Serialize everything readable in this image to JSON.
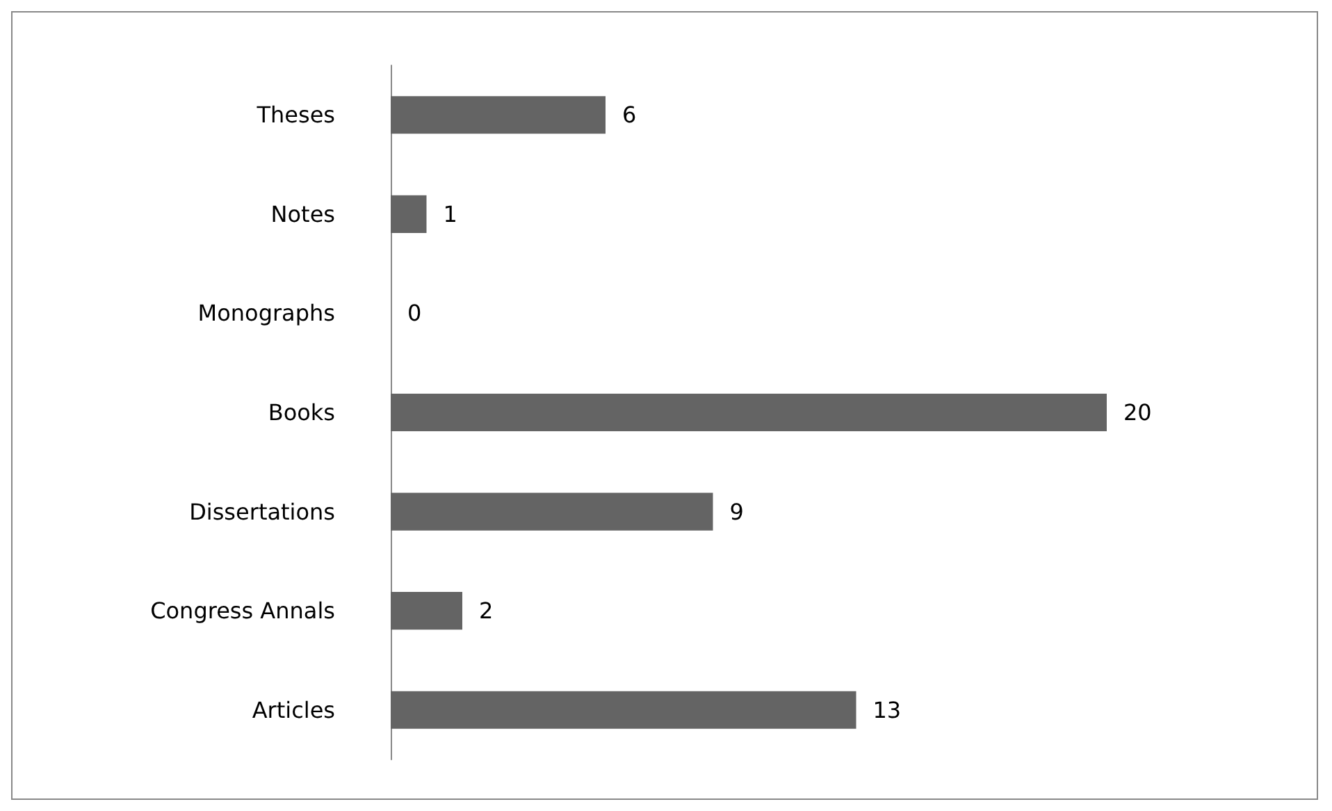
{
  "chart_data": {
    "type": "bar",
    "orientation": "horizontal",
    "categories": [
      "Theses",
      "Notes",
      "Monographs",
      "Books",
      "Dissertations",
      "Congress Annals",
      "Articles"
    ],
    "values": [
      6,
      1,
      0,
      20,
      9,
      2,
      13
    ],
    "color": "#646464",
    "data_labels": true
  }
}
